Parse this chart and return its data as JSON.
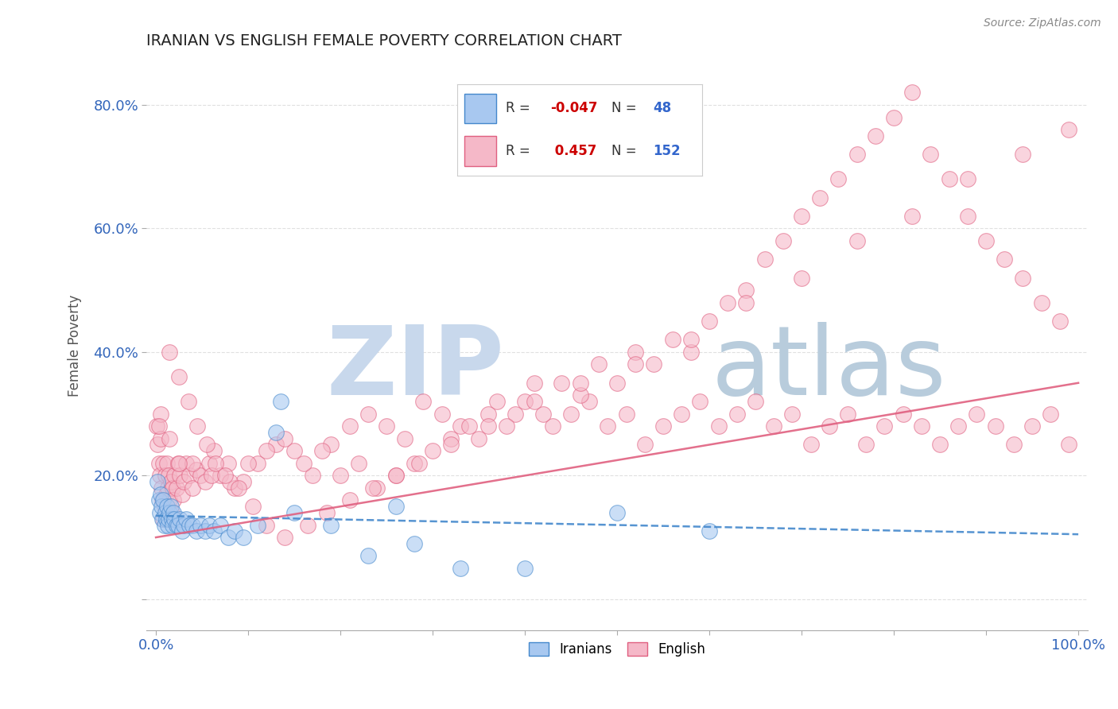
{
  "title": "IRANIAN VS ENGLISH FEMALE POVERTY CORRELATION CHART",
  "source_text": "Source: ZipAtlas.com",
  "ylabel": "Female Poverty",
  "xlim": [
    -0.01,
    1.01
  ],
  "ylim": [
    -0.05,
    0.87
  ],
  "x_ticks": [
    0.0,
    0.1,
    0.2,
    0.3,
    0.4,
    0.5,
    0.6,
    0.7,
    0.8,
    0.9,
    1.0
  ],
  "y_ticks": [
    0.0,
    0.2,
    0.4,
    0.6,
    0.8
  ],
  "legend_R1": "-0.047",
  "legend_N1": "48",
  "legend_R2": "0.457",
  "legend_N2": "152",
  "iranian_color": "#a8c8f0",
  "english_color": "#f5b8c8",
  "line_iranian_color": "#4488cc",
  "line_english_color": "#e06080",
  "background_color": "#ffffff",
  "watermark_zip": "ZIP",
  "watermark_atlas": "atlas",
  "watermark_color_zip": "#c8d8ec",
  "watermark_color_atlas": "#b8ccdc",
  "title_color": "#222222",
  "axis_label_color": "#555555",
  "tick_color": "#3366bb",
  "grid_color": "#dddddd",
  "iranians_x": [
    0.002,
    0.003,
    0.004,
    0.005,
    0.006,
    0.007,
    0.008,
    0.009,
    0.01,
    0.011,
    0.012,
    0.013,
    0.014,
    0.015,
    0.016,
    0.017,
    0.018,
    0.019,
    0.02,
    0.022,
    0.024,
    0.026,
    0.028,
    0.03,
    0.033,
    0.036,
    0.04,
    0.044,
    0.048,
    0.053,
    0.058,
    0.063,
    0.07,
    0.078,
    0.085,
    0.095,
    0.11,
    0.13,
    0.15,
    0.19,
    0.23,
    0.28,
    0.33,
    0.4,
    0.5,
    0.6,
    0.135,
    0.26
  ],
  "iranians_y": [
    0.19,
    0.16,
    0.14,
    0.17,
    0.15,
    0.13,
    0.16,
    0.12,
    0.14,
    0.13,
    0.15,
    0.12,
    0.13,
    0.14,
    0.15,
    0.13,
    0.12,
    0.14,
    0.13,
    0.12,
    0.12,
    0.13,
    0.11,
    0.12,
    0.13,
    0.12,
    0.12,
    0.11,
    0.12,
    0.11,
    0.12,
    0.11,
    0.12,
    0.1,
    0.11,
    0.1,
    0.12,
    0.27,
    0.14,
    0.12,
    0.07,
    0.09,
    0.05,
    0.05,
    0.14,
    0.11,
    0.32,
    0.15
  ],
  "english_x": [
    0.001,
    0.002,
    0.003,
    0.004,
    0.005,
    0.006,
    0.007,
    0.008,
    0.009,
    0.01,
    0.011,
    0.012,
    0.013,
    0.014,
    0.015,
    0.016,
    0.017,
    0.018,
    0.019,
    0.02,
    0.022,
    0.024,
    0.026,
    0.028,
    0.03,
    0.033,
    0.036,
    0.04,
    0.044,
    0.048,
    0.053,
    0.058,
    0.063,
    0.07,
    0.078,
    0.085,
    0.095,
    0.11,
    0.13,
    0.15,
    0.17,
    0.19,
    0.21,
    0.23,
    0.25,
    0.27,
    0.29,
    0.31,
    0.33,
    0.35,
    0.37,
    0.39,
    0.41,
    0.43,
    0.45,
    0.47,
    0.49,
    0.51,
    0.53,
    0.55,
    0.57,
    0.59,
    0.61,
    0.63,
    0.65,
    0.67,
    0.69,
    0.71,
    0.73,
    0.75,
    0.77,
    0.79,
    0.81,
    0.83,
    0.85,
    0.87,
    0.89,
    0.91,
    0.93,
    0.95,
    0.97,
    0.99,
    0.04,
    0.06,
    0.08,
    0.1,
    0.12,
    0.14,
    0.16,
    0.18,
    0.2,
    0.22,
    0.24,
    0.26,
    0.28,
    0.3,
    0.32,
    0.34,
    0.36,
    0.38,
    0.4,
    0.42,
    0.44,
    0.46,
    0.48,
    0.5,
    0.52,
    0.54,
    0.56,
    0.58,
    0.6,
    0.62,
    0.64,
    0.66,
    0.68,
    0.7,
    0.72,
    0.74,
    0.76,
    0.78,
    0.8,
    0.82,
    0.84,
    0.86,
    0.88,
    0.9,
    0.92,
    0.94,
    0.96,
    0.98,
    0.015,
    0.025,
    0.035,
    0.045,
    0.055,
    0.065,
    0.075,
    0.09,
    0.105,
    0.12,
    0.14,
    0.165,
    0.185,
    0.21,
    0.235,
    0.26,
    0.285,
    0.32,
    0.36,
    0.41,
    0.46,
    0.52,
    0.58,
    0.64,
    0.7,
    0.76,
    0.82,
    0.88,
    0.94,
    0.99,
    0.005,
    0.015,
    0.025,
    0.003,
    0.008
  ],
  "english_y": [
    0.28,
    0.25,
    0.22,
    0.2,
    0.26,
    0.18,
    0.16,
    0.22,
    0.15,
    0.2,
    0.17,
    0.22,
    0.18,
    0.2,
    0.16,
    0.19,
    0.14,
    0.18,
    0.16,
    0.2,
    0.18,
    0.22,
    0.2,
    0.17,
    0.19,
    0.22,
    0.2,
    0.18,
    0.21,
    0.2,
    0.19,
    0.22,
    0.24,
    0.2,
    0.22,
    0.18,
    0.19,
    0.22,
    0.25,
    0.24,
    0.2,
    0.25,
    0.28,
    0.3,
    0.28,
    0.26,
    0.32,
    0.3,
    0.28,
    0.26,
    0.32,
    0.3,
    0.35,
    0.28,
    0.3,
    0.32,
    0.28,
    0.3,
    0.25,
    0.28,
    0.3,
    0.32,
    0.28,
    0.3,
    0.32,
    0.28,
    0.3,
    0.25,
    0.28,
    0.3,
    0.25,
    0.28,
    0.3,
    0.28,
    0.25,
    0.28,
    0.3,
    0.28,
    0.25,
    0.28,
    0.3,
    0.25,
    0.22,
    0.2,
    0.19,
    0.22,
    0.24,
    0.26,
    0.22,
    0.24,
    0.2,
    0.22,
    0.18,
    0.2,
    0.22,
    0.24,
    0.26,
    0.28,
    0.3,
    0.28,
    0.32,
    0.3,
    0.35,
    0.33,
    0.38,
    0.35,
    0.4,
    0.38,
    0.42,
    0.4,
    0.45,
    0.48,
    0.5,
    0.55,
    0.58,
    0.62,
    0.65,
    0.68,
    0.72,
    0.75,
    0.78,
    0.82,
    0.72,
    0.68,
    0.62,
    0.58,
    0.55,
    0.52,
    0.48,
    0.45,
    0.4,
    0.36,
    0.32,
    0.28,
    0.25,
    0.22,
    0.2,
    0.18,
    0.15,
    0.12,
    0.1,
    0.12,
    0.14,
    0.16,
    0.18,
    0.2,
    0.22,
    0.25,
    0.28,
    0.32,
    0.35,
    0.38,
    0.42,
    0.48,
    0.52,
    0.58,
    0.62,
    0.68,
    0.72,
    0.76,
    0.3,
    0.26,
    0.22,
    0.28,
    0.13
  ]
}
